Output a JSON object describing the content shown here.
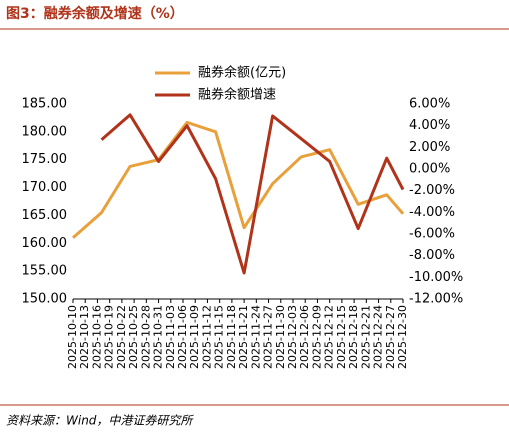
{
  "chart_data": {
    "type": "line",
    "title": "图3：融券余额及增速（%）",
    "source": "资料来源：Wind，中港证券研究所",
    "x": [
      "2025-10-10",
      "2025-10-17",
      "2025-10-24",
      "2025-10-31",
      "2025-11-07",
      "2025-11-14",
      "2025-11-21",
      "2025-11-28",
      "2025-12-05",
      "2025-12-12",
      "2025-12-19",
      "2025-12-26",
      "2025-12-30"
    ],
    "xlim": [
      "2025-10-10",
      "2025-12-30"
    ],
    "xticks": [
      "2025-10-10",
      "2025-10-13",
      "2025-10-16",
      "2025-10-19",
      "2025-10-22",
      "2025-10-25",
      "2025-10-28",
      "2025-10-31",
      "2025-11-03",
      "2025-11-06",
      "2025-11-09",
      "2025-11-12",
      "2025-11-15",
      "2025-11-18",
      "2025-11-21",
      "2025-11-24",
      "2025-11-27",
      "2025-11-30",
      "2025-12-03",
      "2025-12-06",
      "2025-12-09",
      "2025-12-12",
      "2025-12-15",
      "2025-12-18",
      "2025-12-21",
      "2025-12-24",
      "2025-12-27",
      "2025-12-30"
    ],
    "series": [
      {
        "name": "融券余额(亿元)",
        "color": "#E8A03A",
        "values": [
          161.0,
          165.5,
          173.8,
          175.0,
          181.7,
          180.0,
          162.8,
          170.7,
          175.5,
          176.8,
          167.0,
          168.7,
          165.3
        ]
      },
      {
        "name": "融券余额增速",
        "color": "#B0331A",
        "axis": "y2",
        "values": [
          null,
          2.7,
          5.0,
          0.7,
          4.0,
          -0.9,
          -9.6,
          4.9,
          2.8,
          0.7,
          -5.5,
          1.0,
          -1.9
        ]
      }
    ],
    "ylim": [
      150,
      185
    ],
    "yticks": [
      {
        "value": 150,
        "label": "150.00"
      },
      {
        "value": 155,
        "label": "155.00"
      },
      {
        "value": 160,
        "label": "160.00"
      },
      {
        "value": 165,
        "label": "165.00"
      },
      {
        "value": 170,
        "label": "170.00"
      },
      {
        "value": 175,
        "label": "175.00"
      },
      {
        "value": 180,
        "label": "180.00"
      },
      {
        "value": 185,
        "label": "185.00"
      }
    ],
    "y2lim": [
      -12,
      6
    ],
    "y2ticks": [
      {
        "value": -12,
        "label": "-12.00%"
      },
      {
        "value": -10,
        "label": "-10.00%"
      },
      {
        "value": -8,
        "label": "-8.00%"
      },
      {
        "value": -6,
        "label": "-6.00%"
      },
      {
        "value": -4,
        "label": "-4.00%"
      },
      {
        "value": -2,
        "label": "-2.00%"
      },
      {
        "value": 0,
        "label": "0.00%"
      },
      {
        "value": 2,
        "label": "2.00%"
      },
      {
        "value": 4,
        "label": "4.00%"
      },
      {
        "value": 6,
        "label": "6.00%"
      }
    ]
  }
}
